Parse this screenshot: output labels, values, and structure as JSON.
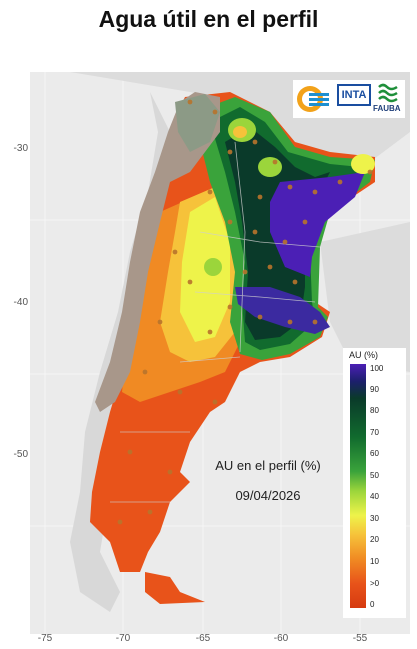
{
  "title": "Agua útil en el perfil",
  "map_caption": "AU en el perfil (%)",
  "date": "09/04/2026",
  "y_ticks": [
    "-30",
    "-40",
    "-50"
  ],
  "x_ticks": [
    "-75",
    "-70",
    "-65",
    "-60",
    "-55"
  ],
  "legend": {
    "title": "AU (%)",
    "labels": [
      "100",
      "90",
      "80",
      "70",
      "60",
      "50",
      "40",
      "30",
      "20",
      "10",
      ">0",
      "0"
    ]
  },
  "logos": {
    "inta": "INTA",
    "fauba": "FAUBA"
  },
  "colors": {
    "very_wet": "#4b1fb5",
    "wet": "#0a3a2a",
    "moderate": "#3aa33b",
    "dry_mid": "#eef34a",
    "dry": "#f08a23",
    "very_dry": "#e8531a",
    "no_data": "#a8978a"
  }
}
